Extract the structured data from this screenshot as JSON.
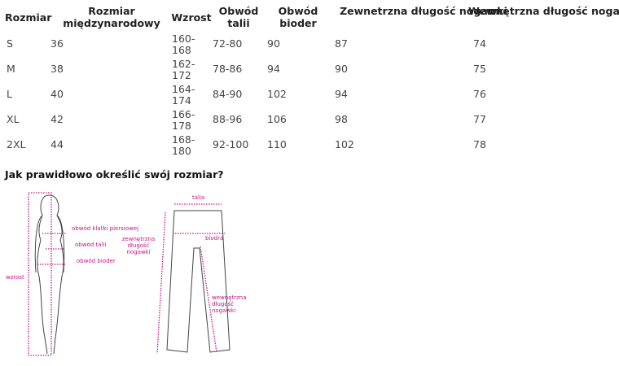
{
  "table": {
    "headers": [
      "Rozmiar",
      "Rozmiar międzynarodowy",
      "Wzrost",
      "Obwód talii",
      "Obwód bioder",
      "Zewnetrzna długość nogawki",
      "Wewnętrzna długość nogawki"
    ],
    "rows": [
      [
        "S",
        "36",
        "160-168",
        "72-80",
        "90",
        "87",
        "74"
      ],
      [
        "M",
        "38",
        "162-172",
        "78-86",
        "94",
        "90",
        "75"
      ],
      [
        "L",
        "40",
        "164-174",
        "84-90",
        "102",
        "94",
        "76"
      ],
      [
        "XL",
        "42",
        "166-178",
        "88-96",
        "106",
        "98",
        "77"
      ],
      [
        "2XL",
        "44",
        "168-180",
        "92-100",
        "110",
        "102",
        "78"
      ]
    ]
  },
  "heading": "Jak prawidłowo określić swój rozmiar?",
  "figure_labels": {
    "woman": [
      "obwód klatki piersiowej",
      "obwód talii",
      "obwód bioder",
      "wzrost"
    ],
    "pants": [
      "talia",
      "biodra",
      "zewnętrzna długość nogawki",
      "wewnętrzna długość nogawki"
    ]
  },
  "colors": {
    "accent": "#c0168a"
  }
}
